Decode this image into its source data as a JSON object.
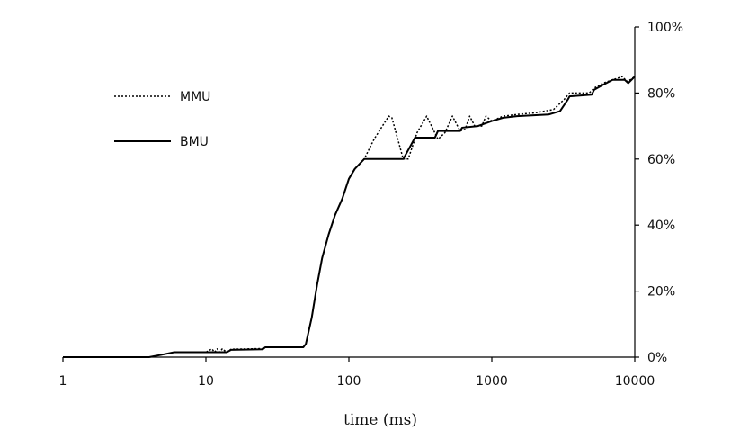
{
  "chart_data": {
    "type": "line",
    "title": "",
    "xlabel": "time (ms)",
    "ylabel": "",
    "xscale": "log",
    "xlim": [
      1,
      10000
    ],
    "ylim": [
      0,
      1
    ],
    "y_axis_side": "right",
    "grid": false,
    "legend_position": "top-left",
    "x_ticks": [
      {
        "value": 1,
        "label": "1"
      },
      {
        "value": 10,
        "label": "10"
      },
      {
        "value": 100,
        "label": "100"
      },
      {
        "value": 1000,
        "label": "1000"
      },
      {
        "value": 10000,
        "label": "10000"
      }
    ],
    "y_ticks": [
      {
        "value": 0,
        "label": "0%"
      },
      {
        "value": 0.2,
        "label": "20%"
      },
      {
        "value": 0.4,
        "label": "40%"
      },
      {
        "value": 0.6,
        "label": "60%"
      },
      {
        "value": 0.8,
        "label": "80%"
      },
      {
        "value": 1,
        "label": "100%"
      }
    ],
    "series": [
      {
        "name": "MMU",
        "style": "dotted",
        "color": "#000000",
        "points": [
          [
            1,
            0
          ],
          [
            4,
            0
          ],
          [
            5,
            0.008
          ],
          [
            6,
            0.015
          ],
          [
            10,
            0.015
          ],
          [
            11,
            0.025
          ],
          [
            11.5,
            0.015
          ],
          [
            12,
            0.025
          ],
          [
            12.5,
            0.015
          ],
          [
            13,
            0.025
          ],
          [
            14,
            0.015
          ],
          [
            15,
            0.024
          ],
          [
            25,
            0.026
          ],
          [
            26,
            0.03
          ],
          [
            48,
            0.03
          ],
          [
            50,
            0.04
          ],
          [
            55,
            0.12
          ],
          [
            60,
            0.22
          ],
          [
            65,
            0.3
          ],
          [
            72,
            0.37
          ],
          [
            80,
            0.43
          ],
          [
            90,
            0.48
          ],
          [
            100,
            0.54
          ],
          [
            110,
            0.57
          ],
          [
            128,
            0.6
          ],
          [
            150,
            0.66
          ],
          [
            190,
            0.73
          ],
          [
            200,
            0.725
          ],
          [
            240,
            0.6
          ],
          [
            260,
            0.6
          ],
          [
            300,
            0.68
          ],
          [
            350,
            0.73
          ],
          [
            420,
            0.66
          ],
          [
            470,
            0.68
          ],
          [
            530,
            0.73
          ],
          [
            600,
            0.685
          ],
          [
            650,
            0.69
          ],
          [
            700,
            0.73
          ],
          [
            760,
            0.7
          ],
          [
            850,
            0.7
          ],
          [
            910,
            0.73
          ],
          [
            1000,
            0.715
          ],
          [
            1200,
            0.73
          ],
          [
            1500,
            0.735
          ],
          [
            2000,
            0.74
          ],
          [
            2700,
            0.75
          ],
          [
            3200,
            0.78
          ],
          [
            3500,
            0.8
          ],
          [
            4800,
            0.8
          ],
          [
            5200,
            0.815
          ],
          [
            6000,
            0.83
          ],
          [
            7000,
            0.84
          ],
          [
            8200,
            0.85
          ],
          [
            8800,
            0.835
          ],
          [
            9300,
            0.84
          ],
          [
            10000,
            0.85
          ]
        ]
      },
      {
        "name": "BMU",
        "style": "solid",
        "color": "#000000",
        "points": [
          [
            1,
            0
          ],
          [
            4,
            0
          ],
          [
            5,
            0.008
          ],
          [
            6,
            0.015
          ],
          [
            14,
            0.015
          ],
          [
            15,
            0.022
          ],
          [
            25,
            0.024
          ],
          [
            26,
            0.03
          ],
          [
            48,
            0.03
          ],
          [
            50,
            0.04
          ],
          [
            55,
            0.12
          ],
          [
            60,
            0.22
          ],
          [
            65,
            0.3
          ],
          [
            72,
            0.37
          ],
          [
            80,
            0.43
          ],
          [
            90,
            0.48
          ],
          [
            100,
            0.54
          ],
          [
            110,
            0.57
          ],
          [
            128,
            0.6
          ],
          [
            240,
            0.6
          ],
          [
            270,
            0.64
          ],
          [
            290,
            0.665
          ],
          [
            400,
            0.665
          ],
          [
            420,
            0.685
          ],
          [
            600,
            0.685
          ],
          [
            620,
            0.695
          ],
          [
            800,
            0.7
          ],
          [
            1000,
            0.715
          ],
          [
            1200,
            0.725
          ],
          [
            1500,
            0.73
          ],
          [
            2500,
            0.735
          ],
          [
            3000,
            0.745
          ],
          [
            3400,
            0.78
          ],
          [
            3500,
            0.79
          ],
          [
            5000,
            0.795
          ],
          [
            5200,
            0.81
          ],
          [
            6000,
            0.825
          ],
          [
            7000,
            0.84
          ],
          [
            8500,
            0.84
          ],
          [
            9000,
            0.83
          ],
          [
            9500,
            0.84
          ],
          [
            10000,
            0.85
          ]
        ]
      }
    ]
  }
}
